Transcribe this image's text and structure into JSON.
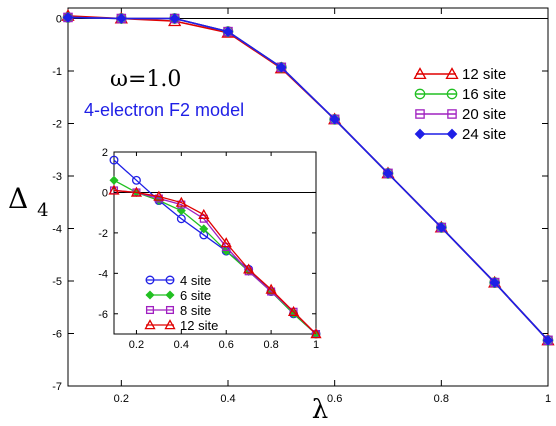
{
  "chart_data": [
    {
      "type": "line",
      "panel": "main",
      "xlabel": "λ",
      "ylabel_main": "Δ",
      "ylabel_sub": "4",
      "xlim": [
        0.1,
        1.0
      ],
      "ylim": [
        -7,
        0.2
      ],
      "x_ticks": [
        0.2,
        0.4,
        0.6,
        0.8,
        1.0
      ],
      "x_tick_labels": [
        "0.2",
        "0.4",
        "0.6",
        "0.8",
        "1"
      ],
      "y_ticks": [
        0,
        -1,
        -2,
        -3,
        -4,
        -5,
        -6,
        -7
      ],
      "y_tick_labels": [
        "0",
        "-1",
        "-2",
        "-3",
        "-4",
        "-5",
        "-6",
        "-7"
      ],
      "reference_line_y": 0,
      "annotations": [
        {
          "text": "ω=1.0",
          "color": "#000000"
        },
        {
          "text": "4-electron F2 model",
          "color": "#1f1fe6"
        }
      ],
      "legend_position": "top-right",
      "x": [
        0.1,
        0.2,
        0.3,
        0.4,
        0.5,
        0.6,
        0.7,
        0.8,
        0.9,
        1.0
      ],
      "series": [
        {
          "name": "12 site",
          "color": "#e00000",
          "marker": "triangle",
          "values": [
            0.05,
            0.0,
            -0.05,
            -0.27,
            -0.95,
            -1.92,
            -2.95,
            -3.98,
            -5.03,
            -6.13
          ]
        },
        {
          "name": "16 site",
          "color": "#22c022",
          "marker": "circle",
          "values": [
            0.02,
            0.0,
            0.0,
            -0.25,
            -0.93,
            -1.92,
            -2.95,
            -3.98,
            -5.03,
            -6.13
          ]
        },
        {
          "name": "20 site",
          "color": "#a020c0",
          "marker": "square",
          "values": [
            0.02,
            0.0,
            0.0,
            -0.25,
            -0.93,
            -1.92,
            -2.95,
            -3.98,
            -5.03,
            -6.13
          ]
        },
        {
          "name": "24 site",
          "color": "#1f1fe6",
          "marker": "diamond",
          "values": [
            0.02,
            0.0,
            0.0,
            -0.25,
            -0.93,
            -1.92,
            -2.95,
            -3.98,
            -5.03,
            -6.13
          ]
        }
      ]
    },
    {
      "type": "line",
      "panel": "inset",
      "xlim": [
        0.1,
        1.0
      ],
      "ylim": [
        -7,
        2
      ],
      "x_ticks": [
        0.2,
        0.4,
        0.6,
        0.8,
        1.0
      ],
      "x_tick_labels": [
        "0.2",
        "0.4",
        "0.6",
        "0.8",
        "1"
      ],
      "y_ticks": [
        2,
        0,
        -2,
        -4,
        -6
      ],
      "y_tick_labels": [
        "2",
        "0",
        "-2",
        "-4",
        "-6"
      ],
      "reference_line_y": 0,
      "legend_position": "bottom-left",
      "x": [
        0.1,
        0.2,
        0.3,
        0.4,
        0.5,
        0.6,
        0.7,
        0.8,
        0.9,
        1.0
      ],
      "series": [
        {
          "name": "4 site",
          "color": "#1f1fe6",
          "marker": "circle",
          "values": [
            1.6,
            0.6,
            -0.4,
            -1.3,
            -2.1,
            -2.9,
            -3.8,
            -4.9,
            -6.0,
            -7.0
          ]
        },
        {
          "name": "6 site",
          "color": "#22c022",
          "marker": "diamond",
          "values": [
            0.6,
            0.0,
            -0.4,
            -0.9,
            -1.8,
            -2.9,
            -3.9,
            -4.9,
            -6.0,
            -7.0
          ]
        },
        {
          "name": "8 site",
          "color": "#a020c0",
          "marker": "square",
          "values": [
            0.1,
            0.0,
            -0.3,
            -0.6,
            -1.3,
            -2.7,
            -3.9,
            -4.9,
            -5.9,
            -7.0
          ]
        },
        {
          "name": "12 site",
          "color": "#e00000",
          "marker": "triangle",
          "values": [
            0.1,
            0.0,
            -0.2,
            -0.5,
            -1.1,
            -2.5,
            -3.8,
            -4.8,
            -5.9,
            -7.0
          ]
        }
      ]
    }
  ]
}
